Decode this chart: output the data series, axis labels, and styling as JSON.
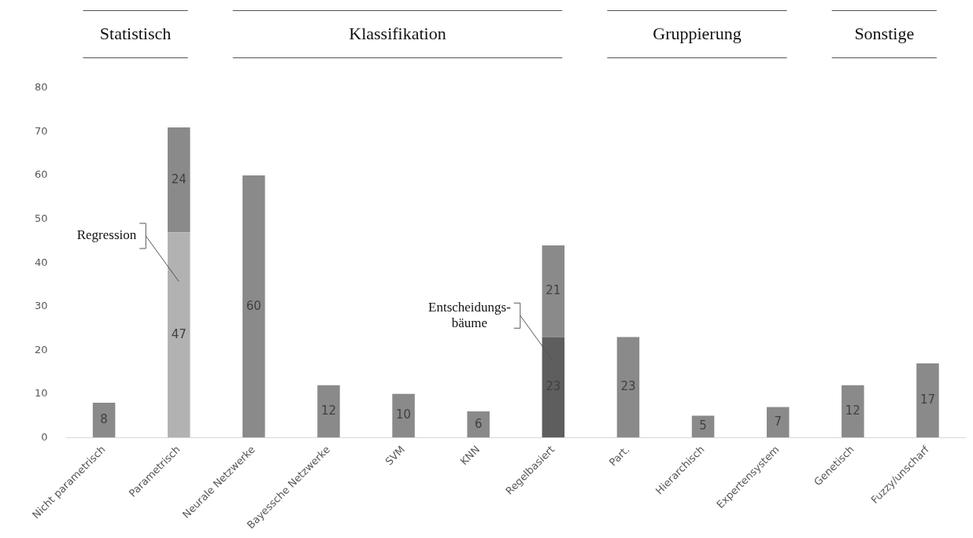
{
  "chart_data": {
    "type": "bar",
    "stacked": true,
    "data_labels": true,
    "grid": false,
    "legend": false,
    "categories": [
      "Nicht parametrisch",
      "Parametrisch",
      "Neurale Netzwerke",
      "Bayessche Netzwerke",
      "SVM",
      "KNN",
      "Regelbasiert",
      "Part.",
      "Hierarchisch",
      "Expertensystem",
      "Genetisch",
      "Fuzzy/unscharf"
    ],
    "series": [
      {
        "colors": [
          "#8a8a8a",
          "#b2b2b2",
          "#8a8a8a",
          "#8a8a8a",
          "#8a8a8a",
          "#8a8a8a",
          "#5e5e5e",
          "#8a8a8a",
          "#8a8a8a",
          "#8a8a8a",
          "#8a8a8a",
          "#8a8a8a"
        ],
        "values": [
          8,
          47,
          60,
          12,
          10,
          6,
          23,
          23,
          5,
          7,
          12,
          17
        ]
      },
      {
        "color": "#8a8a8a",
        "values": [
          null,
          24,
          null,
          null,
          null,
          null,
          21,
          null,
          null,
          null,
          null,
          null
        ]
      }
    ],
    "ylim": [
      0,
      80
    ],
    "yticks": [
      0,
      10,
      20,
      30,
      40,
      50,
      60,
      70,
      80
    ],
    "annotations": [
      "Statistisch",
      "Klassifikation",
      "Gruppierung",
      "Sonstige",
      "Regression",
      "Entscheidungs-\nbäume"
    ]
  }
}
